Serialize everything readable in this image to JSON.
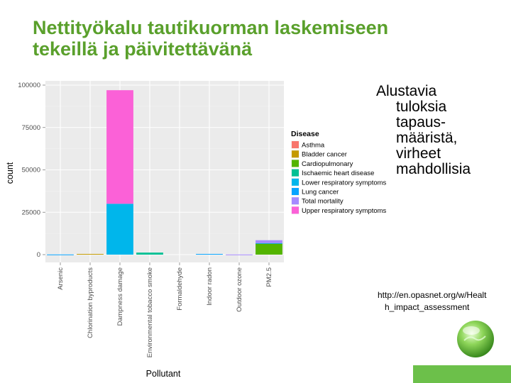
{
  "slide": {
    "title_lines": [
      "Nettityökalu tautikuorman laskemiseen",
      "tekeillä ja päivitettävänä"
    ],
    "side_text_lines": [
      "Alustavia",
      "tuloksia",
      "tapaus-",
      "määristä,",
      "virheet",
      "mahdollisia"
    ],
    "link_lines": [
      "http://en.opasnet.org/w/Healt",
      "h_impact_assessment"
    ],
    "accent_color": "#5aa02c",
    "footer_bar_color": "#6cc04a",
    "logo_icon": "green-globe-icon"
  },
  "chart_data": {
    "type": "bar",
    "stacked": true,
    "xlabel": "Pollutant",
    "ylabel": "count",
    "ylim": [
      0,
      100000
    ],
    "yticks": [
      0,
      25000,
      50000,
      75000,
      100000
    ],
    "ytick_labels": [
      "0",
      "25000",
      "50000",
      "75000",
      "100000"
    ],
    "categories": [
      "Arsenic",
      "Chlorination byproducts",
      "Dampness damage",
      "Environmental tobacco smoke",
      "Formaldehyde",
      "Indoor radon",
      "Outdoor ozone",
      "PM2.5"
    ],
    "legend": {
      "title": "Disease",
      "position": "right"
    },
    "grid": true,
    "series": [
      {
        "name": "Asthma",
        "color": "#f8766d",
        "values": [
          0,
          0,
          0,
          0,
          0,
          0,
          0,
          0
        ]
      },
      {
        "name": "Bladder cancer",
        "color": "#c49a00",
        "values": [
          0,
          400,
          0,
          0,
          0,
          0,
          0,
          0
        ]
      },
      {
        "name": "Cardiopulmonary",
        "color": "#53b400",
        "values": [
          0,
          0,
          0,
          0,
          0,
          0,
          0,
          6500
        ]
      },
      {
        "name": "Ischaemic heart disease",
        "color": "#00c094",
        "values": [
          0,
          0,
          0,
          1200,
          0,
          0,
          0,
          0
        ]
      },
      {
        "name": "Lower respiratory symptoms",
        "color": "#00b6eb",
        "values": [
          0,
          0,
          30000,
          0,
          0,
          0,
          0,
          0
        ]
      },
      {
        "name": "Lung cancer",
        "color": "#06a4ff",
        "values": [
          100,
          0,
          0,
          0,
          0,
          400,
          0,
          300
        ]
      },
      {
        "name": "Total mortality",
        "color": "#a58aff",
        "values": [
          0,
          0,
          0,
          0,
          0,
          0,
          100,
          1700
        ]
      },
      {
        "name": "Upper respiratory symptoms",
        "color": "#fb61d7",
        "values": [
          0,
          0,
          67000,
          0,
          0,
          0,
          0,
          0
        ]
      }
    ]
  }
}
